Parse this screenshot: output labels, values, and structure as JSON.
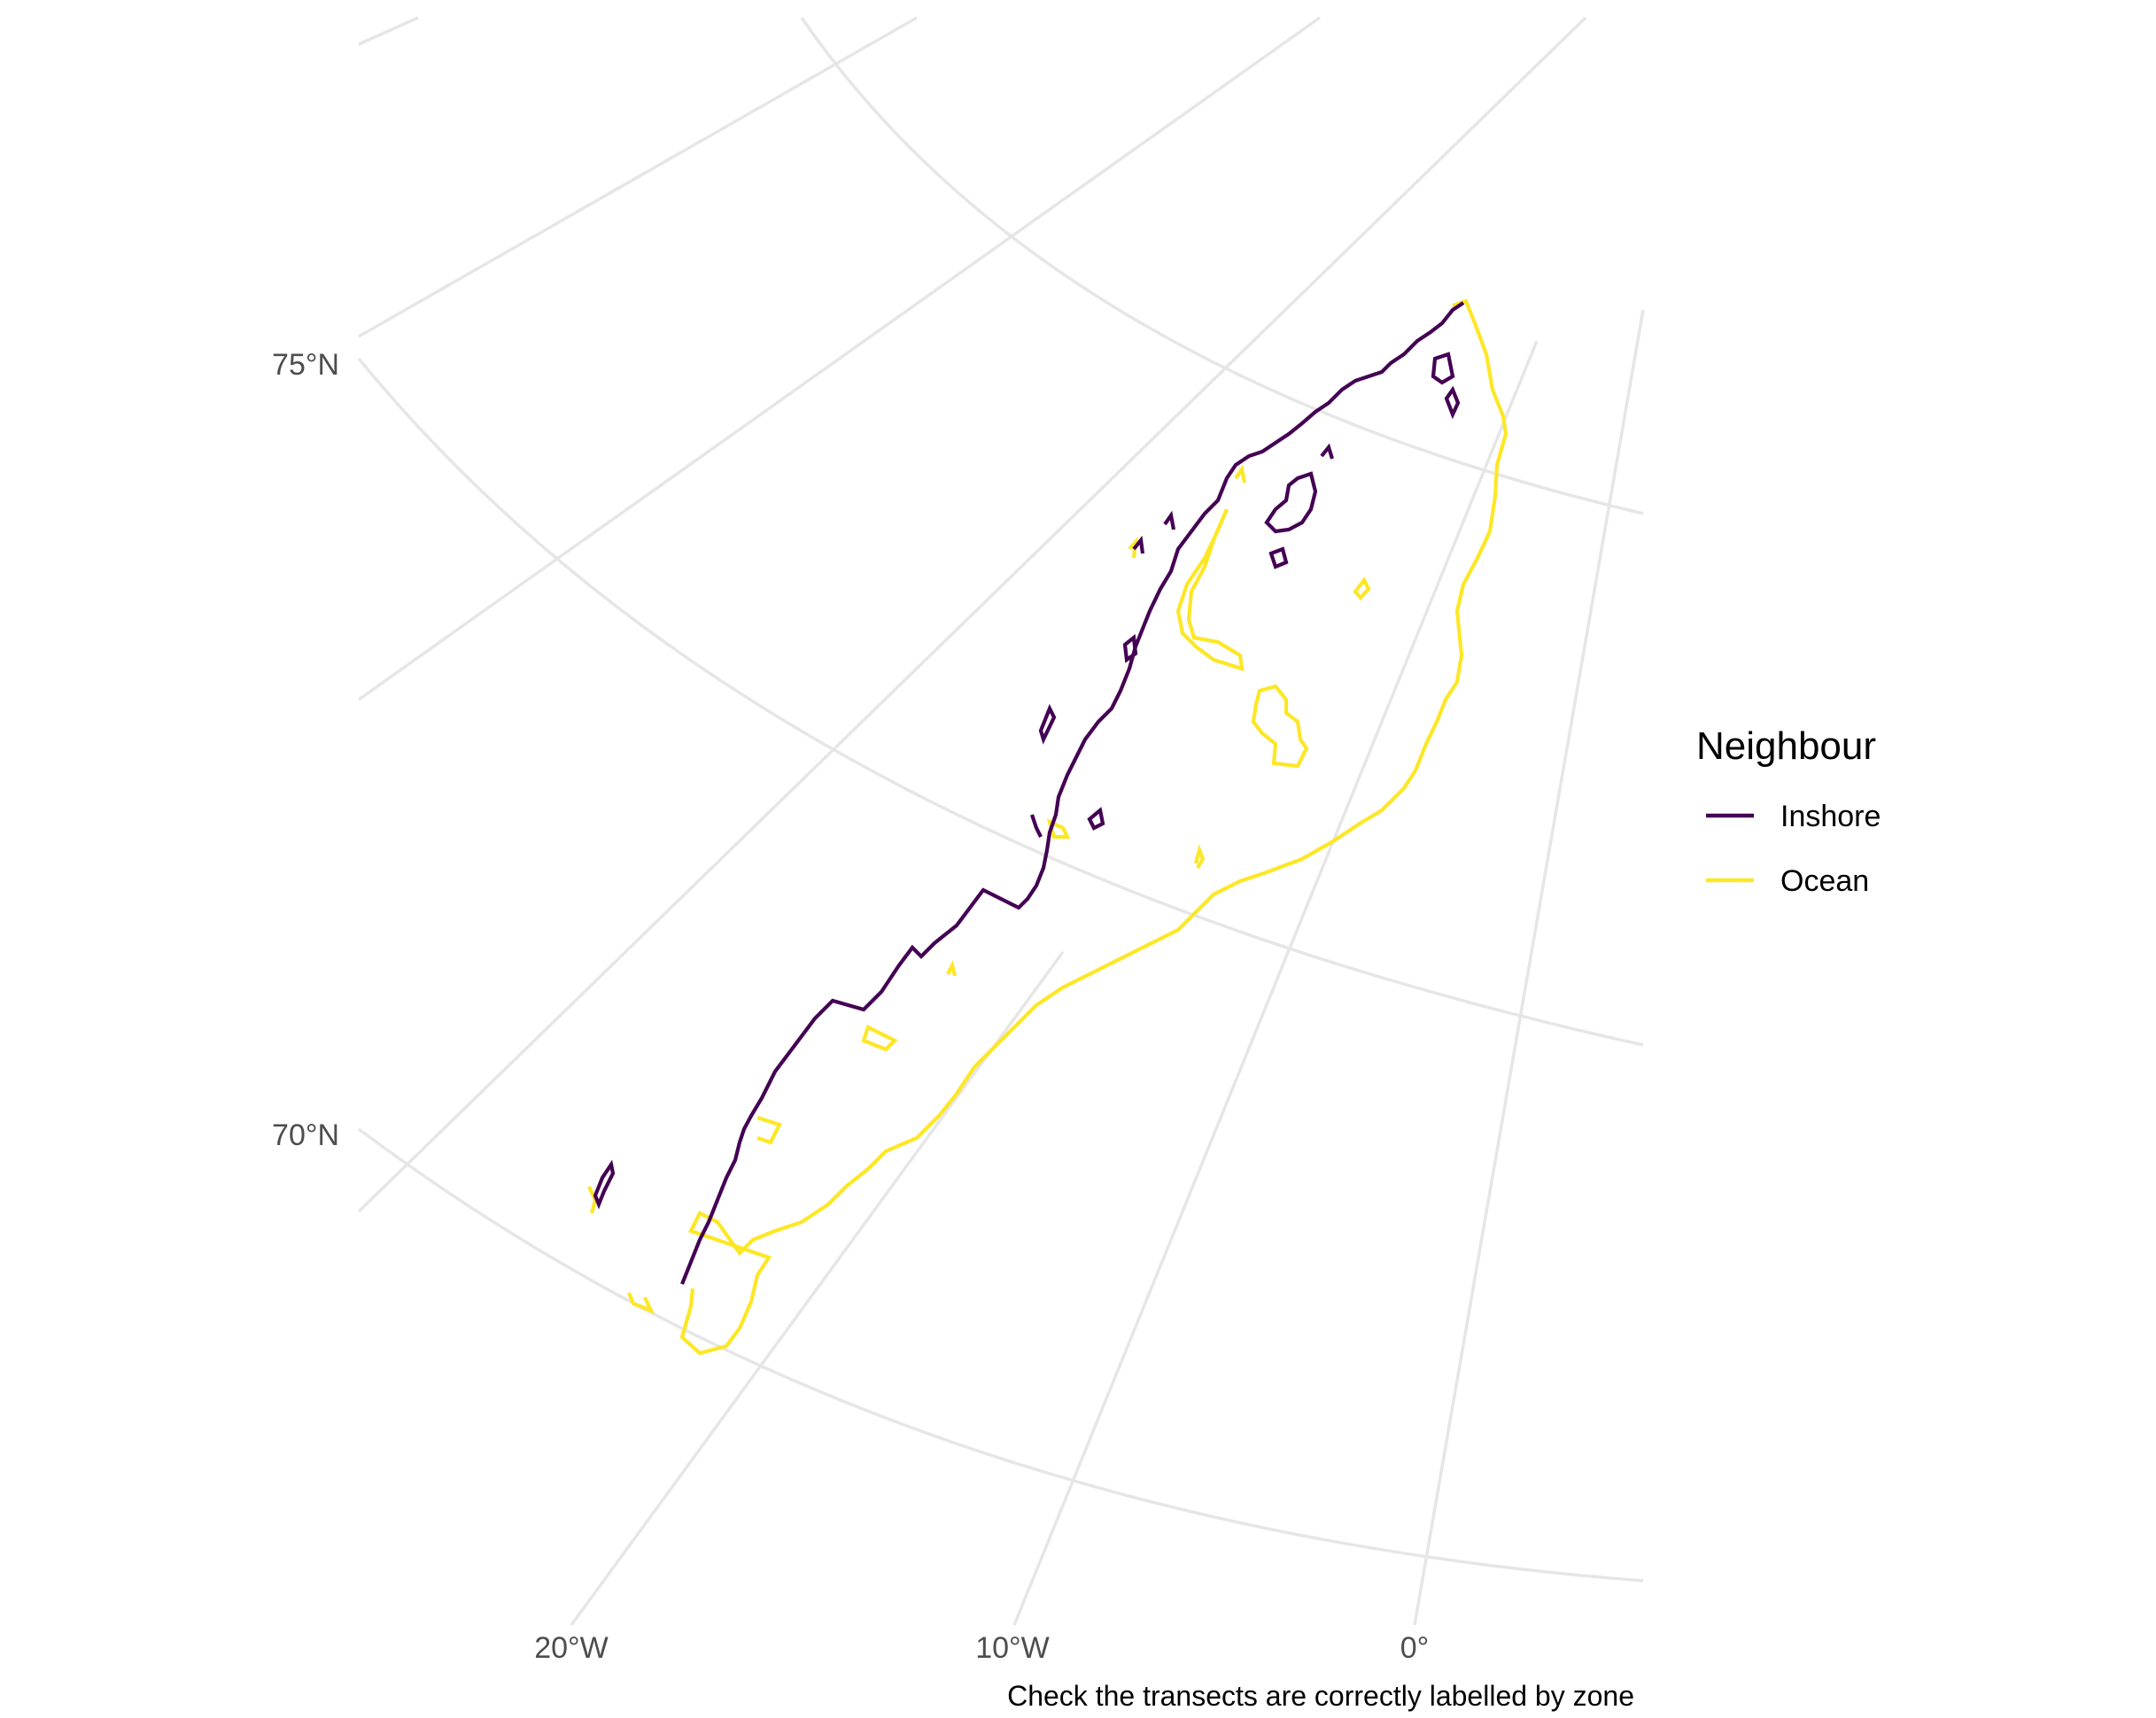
{
  "map": {
    "lat_labels": [
      "75°N",
      "70°N"
    ],
    "lon_labels": [
      "20°W",
      "10°W",
      "0°"
    ],
    "caption": "Check the transects are correctly labelled by zone"
  },
  "legend": {
    "title": "Neighbour",
    "items": [
      {
        "label": "Inshore",
        "color": "#440154"
      },
      {
        "label": "Ocean",
        "color": "#fde725"
      }
    ]
  },
  "colors": {
    "graticule": "#e6e6e6",
    "tick_text": "#4d4d4d",
    "inshore": "#440154",
    "ocean": "#fde725"
  }
}
